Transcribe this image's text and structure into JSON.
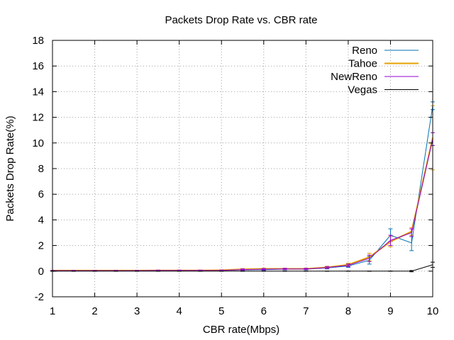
{
  "chart_data": {
    "type": "line",
    "title": "Packets Drop Rate vs. CBR rate",
    "xlabel": "CBR rate(Mbps)",
    "ylabel": "Packets Drop Rate(%)",
    "xlim": [
      1,
      10
    ],
    "ylim": [
      -2,
      18
    ],
    "xticks": [
      1,
      2,
      3,
      4,
      5,
      6,
      7,
      8,
      9,
      10
    ],
    "yticks": [
      -2,
      0,
      2,
      4,
      6,
      8,
      10,
      12,
      14,
      16,
      18
    ],
    "grid": true,
    "legend_position": "top-right",
    "x": [
      1,
      1.5,
      2,
      2.5,
      3,
      3.5,
      4,
      4.5,
      5,
      5.5,
      6,
      6.5,
      7,
      7.5,
      8,
      8.5,
      9,
      9.5,
      10
    ],
    "series": [
      {
        "name": "Reno",
        "color": "#0072b2",
        "values": [
          0.03,
          0.03,
          0.03,
          0.03,
          0.03,
          0.05,
          0.05,
          0.05,
          0.05,
          0.1,
          0.12,
          0.15,
          0.15,
          0.25,
          0.4,
          0.85,
          2.8,
          2.2,
          12.9
        ],
        "errors": [
          0.02,
          0.02,
          0.02,
          0.02,
          0.02,
          0.03,
          0.03,
          0.03,
          0.03,
          0.05,
          0.05,
          0.05,
          0.05,
          0.08,
          0.1,
          0.3,
          0.5,
          0.6,
          0.3
        ]
      },
      {
        "name": "Tahoe",
        "color": "#e69f00",
        "values": [
          0.05,
          0.05,
          0.05,
          0.05,
          0.05,
          0.06,
          0.06,
          0.06,
          0.08,
          0.15,
          0.18,
          0.18,
          0.18,
          0.3,
          0.5,
          1.1,
          2.3,
          3.1,
          10.4
        ],
        "errors": [
          0.02,
          0.02,
          0.02,
          0.02,
          0.02,
          0.03,
          0.03,
          0.03,
          0.03,
          0.05,
          0.05,
          0.05,
          0.05,
          0.08,
          0.12,
          0.3,
          0.4,
          0.3,
          2.5
        ]
      },
      {
        "name": "NewReno",
        "color": "#9400d3",
        "values": [
          0.04,
          0.04,
          0.04,
          0.04,
          0.04,
          0.05,
          0.05,
          0.05,
          0.06,
          0.12,
          0.15,
          0.17,
          0.17,
          0.28,
          0.45,
          1.0,
          2.4,
          3.0,
          10.3
        ],
        "errors": [
          0.02,
          0.02,
          0.02,
          0.02,
          0.02,
          0.03,
          0.03,
          0.03,
          0.03,
          0.05,
          0.05,
          0.05,
          0.05,
          0.08,
          0.1,
          0.25,
          0.4,
          0.3,
          0.5
        ]
      },
      {
        "name": "Vegas",
        "color": "#000000",
        "values": [
          0,
          0,
          0,
          0,
          0,
          0,
          0,
          0,
          0,
          0,
          0,
          0,
          0,
          0,
          0,
          0,
          0,
          0,
          0.5
        ],
        "errors": [
          0,
          0,
          0,
          0,
          0,
          0,
          0,
          0,
          0,
          0,
          0,
          0,
          0,
          0,
          0,
          0,
          0,
          0.05,
          0.2
        ]
      }
    ]
  }
}
